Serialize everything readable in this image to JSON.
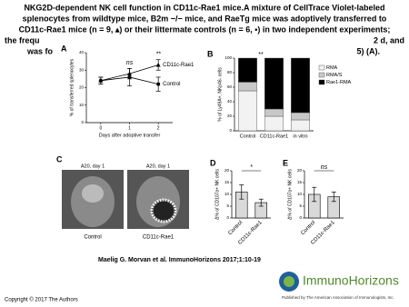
{
  "header": {
    "title_lines": [
      "NKG2D-dependent NK cell function in CD11c-Rae1 mice.A mixture of CellTrace Violet-labeled",
      "splenocytes from wildtype mice, B2m −/− mice, and RaeTg mice was adoptively transferred to",
      "CD11c-Rae1 mice (n = 9, ▴) or their littermate controls (n = 6, •) in two independent experiments;"
    ],
    "fragments": [
      "the frequ",
      "2 d, and",
      "was fo",
      "5) (A)."
    ]
  },
  "panel_a": {
    "label": "A",
    "type": "line",
    "y_label": "% of transferred splenocytes",
    "x_label": "Days after adoptive transfer",
    "x": [
      0,
      1,
      2
    ],
    "xlim": [
      -0.5,
      2.5
    ],
    "xticks": [
      0,
      1,
      2
    ],
    "ylim": [
      0,
      40
    ],
    "yticks": [
      0,
      10,
      20,
      30,
      40
    ],
    "series": [
      {
        "name": "CD11c-Rae1",
        "color": "#000000",
        "marker": "triangle",
        "values": [
          24,
          28,
          33
        ],
        "errors": [
          2,
          3,
          3
        ]
      },
      {
        "name": "Control",
        "color": "#000000",
        "marker": "circle",
        "values": [
          24,
          26,
          22
        ],
        "errors": [
          2,
          5,
          4
        ]
      }
    ],
    "annotations": [
      "ns",
      "**"
    ]
  },
  "panel_b": {
    "label": "B",
    "type": "stacked_bar",
    "y_label": "% of Ly49A+, NKp46- cells",
    "categories": [
      "Control",
      "CD11c-Rae1",
      "in vitro"
    ],
    "ylim": [
      0,
      100
    ],
    "yticks": [
      0,
      20,
      40,
      60,
      80,
      100
    ],
    "series": [
      {
        "name": "RMA",
        "color": "#f2f2f2",
        "values": [
          55,
          20,
          15
        ]
      },
      {
        "name": "RMA/S",
        "color": "#c8c8c8",
        "values": [
          12,
          10,
          10
        ]
      },
      {
        "name": "Rae1-RMA",
        "color": "#000000",
        "values": [
          33,
          70,
          75
        ]
      }
    ],
    "annotation": "**"
  },
  "panel_c": {
    "label": "C",
    "image_titles": [
      "A20, day 1",
      "A20, day 1"
    ],
    "categories": [
      "Control",
      "CD11c-Rae1"
    ]
  },
  "panel_d": {
    "label": "D",
    "type": "bar",
    "y_label": "Δ% of CD107a+ NK cells",
    "categories": [
      "Control",
      "CD11c-Rae1"
    ],
    "values": [
      11,
      6.5
    ],
    "errors": [
      3,
      1.5
    ],
    "ylim": [
      0,
      20
    ],
    "yticks": [
      0,
      5,
      10,
      15,
      20
    ],
    "annotation": "*"
  },
  "panel_e": {
    "label": "E",
    "type": "bar",
    "y_label": "Δ% of CD107a+ NK cells",
    "categories": [
      "Control",
      "CD11c-Rae1"
    ],
    "values": [
      10,
      9
    ],
    "errors": [
      3,
      2
    ],
    "ylim": [
      0,
      20
    ],
    "yticks": [
      0,
      5,
      10,
      15,
      20
    ],
    "annotation": "ns"
  },
  "footer": {
    "citation": "Maelig G. Morvan et al. ImmunoHorizons 2017;1:10-19",
    "copyright": "Copyright © 2017 The Authors",
    "logo_name": "ImmunoHorizons",
    "logo_tagline": "Published by The American Association of Immunologists, Inc."
  }
}
